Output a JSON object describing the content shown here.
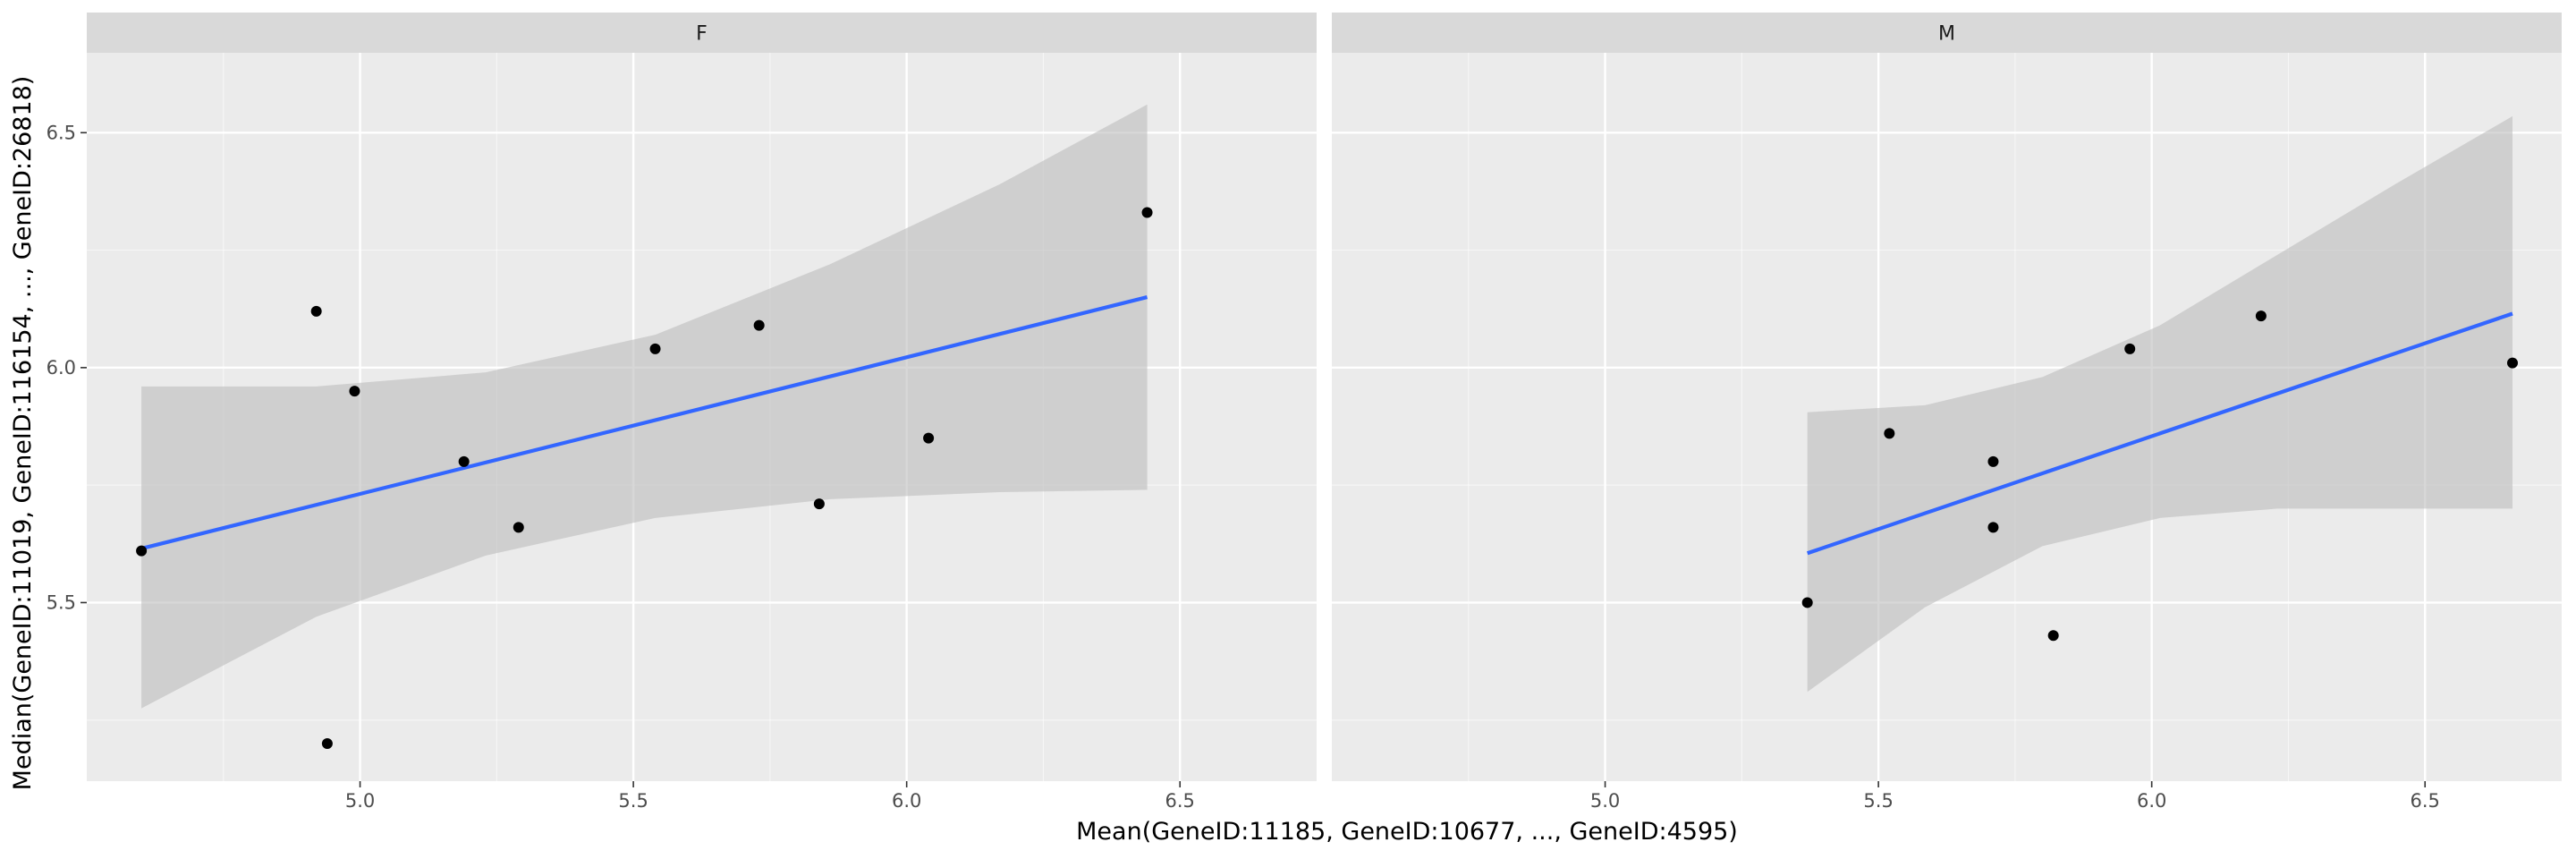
{
  "chart_data": {
    "type": "scatter",
    "xlabel": "Mean(GeneID:11185, GeneID:10677, ..., GeneID:4595)",
    "ylabel": "Median(GeneID:11019, GeneID:116154, ..., GeneID:26818)",
    "xlim": [
      4.5,
      6.75
    ],
    "ylim": [
      5.12,
      6.67
    ],
    "x_ticks": [
      5.0,
      5.5,
      6.0,
      6.5
    ],
    "x_tick_labels": [
      "5.0",
      "5.5",
      "6.0",
      "6.5"
    ],
    "y_ticks": [
      5.5,
      6.0,
      6.5
    ],
    "y_tick_labels": [
      "5.5",
      "6.0",
      "6.5"
    ],
    "grid": true,
    "colors": {
      "panel_bg": "#ebebeb",
      "strip_bg": "#d9d9d9",
      "grid_major": "#ffffff",
      "point": "#000000",
      "fit_line": "#3366ff",
      "ribbon": "#bdbdbd"
    },
    "panels": [
      {
        "strip_label": "F",
        "points": [
          {
            "x": 4.6,
            "y": 5.61
          },
          {
            "x": 4.92,
            "y": 6.12
          },
          {
            "x": 4.94,
            "y": 5.2
          },
          {
            "x": 4.99,
            "y": 5.95
          },
          {
            "x": 5.19,
            "y": 5.8
          },
          {
            "x": 5.29,
            "y": 5.66
          },
          {
            "x": 5.54,
            "y": 6.04
          },
          {
            "x": 5.73,
            "y": 6.09
          },
          {
            "x": 5.84,
            "y": 5.71
          },
          {
            "x": 6.04,
            "y": 5.85
          },
          {
            "x": 6.44,
            "y": 6.33
          }
        ],
        "fit": {
          "x_start": 4.6,
          "y_start": 5.615,
          "x_end": 6.44,
          "y_end": 6.15
        },
        "band": {
          "x": [
            4.6,
            4.92,
            5.23,
            5.54,
            5.86,
            6.17,
            6.44
          ],
          "lower": [
            5.275,
            5.47,
            5.6,
            5.68,
            5.72,
            5.735,
            5.74
          ],
          "upper": [
            5.96,
            5.96,
            5.99,
            6.07,
            6.22,
            6.39,
            6.56
          ]
        }
      },
      {
        "strip_label": "M",
        "points": [
          {
            "x": 5.37,
            "y": 5.5
          },
          {
            "x": 5.52,
            "y": 5.86
          },
          {
            "x": 5.71,
            "y": 5.8
          },
          {
            "x": 5.71,
            "y": 5.66
          },
          {
            "x": 5.82,
            "y": 5.43
          },
          {
            "x": 5.96,
            "y": 6.04
          },
          {
            "x": 6.2,
            "y": 6.11
          },
          {
            "x": 6.66,
            "y": 6.01
          }
        ],
        "fit": {
          "x_start": 5.37,
          "y_start": 5.605,
          "x_end": 6.66,
          "y_end": 6.115
        },
        "band": {
          "x": [
            5.37,
            5.585,
            5.8,
            6.015,
            6.23,
            6.445,
            6.66
          ],
          "lower": [
            5.31,
            5.49,
            5.62,
            5.68,
            5.7,
            5.7,
            5.7
          ],
          "upper": [
            5.905,
            5.92,
            5.98,
            6.09,
            6.24,
            6.39,
            6.535
          ]
        }
      }
    ]
  }
}
